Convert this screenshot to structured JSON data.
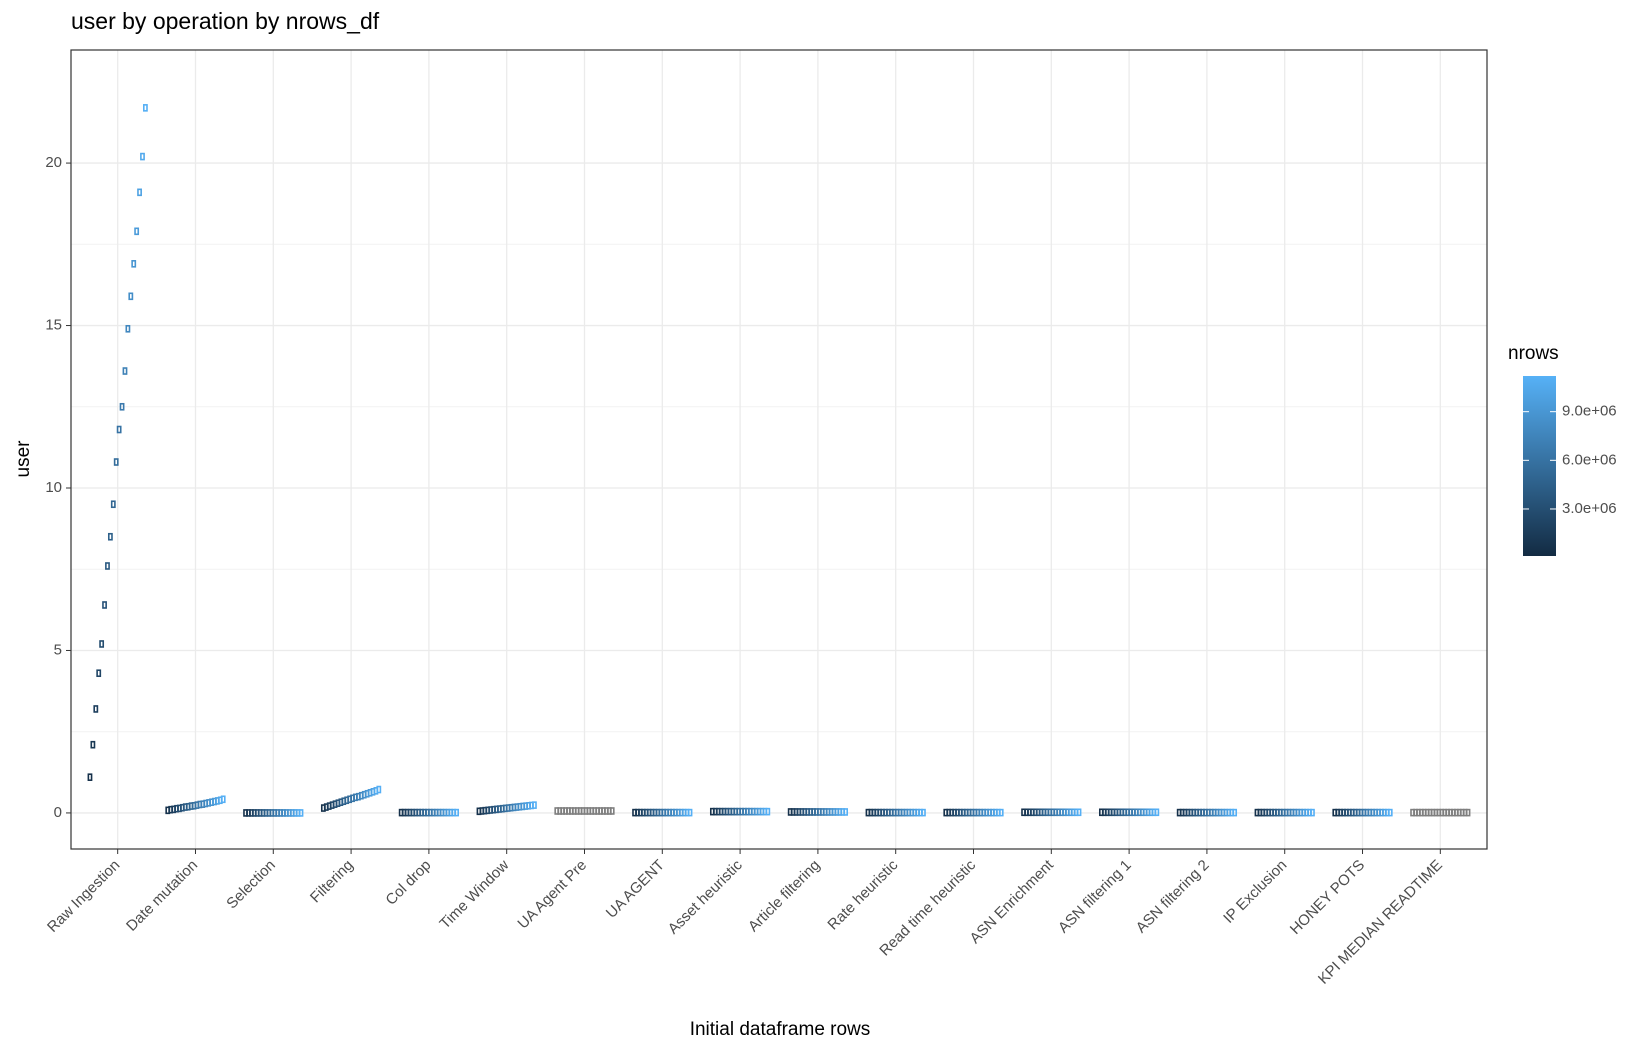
{
  "chart_data": {
    "type": "dodged-box",
    "title": "user by operation by nrows_df",
    "x_label": "Initial dataframe rows",
    "y_label": "user",
    "legend_title": "nrows",
    "ylim": [
      -1.11,
      23.48
    ],
    "yticks": [
      0,
      5,
      10,
      15,
      20
    ],
    "grid": true,
    "low_color": "#132B43",
    "high_color": "#56B1F7",
    "na_color": "#7F7F7F",
    "colorlim": [
      100000,
      11200000
    ],
    "colorticks": [
      {
        "value": 3000000,
        "label": "3.0e+06"
      },
      {
        "value": 6000000,
        "label": "6.0e+06"
      },
      {
        "value": 9000000,
        "label": "9.0e+06"
      }
    ],
    "nrows": [
      600000,
      1150000,
      1700000,
      2250000,
      2800000,
      3350000,
      3900000,
      4450000,
      5000000,
      5550000,
      6100000,
      6650000,
      7200000,
      7750000,
      8300000,
      8850000,
      9400000,
      9950000,
      10500000,
      11050000
    ],
    "groups": [
      {
        "name": "Raw Ingestion",
        "has_nrows": true,
        "values": [
          1.1,
          2.1,
          3.2,
          4.3,
          5.2,
          6.4,
          7.6,
          8.5,
          9.5,
          10.8,
          11.8,
          12.5,
          13.6,
          14.9,
          15.9,
          16.9,
          17.9,
          19.1,
          20.2,
          21.7
        ]
      },
      {
        "name": "Date mutation",
        "has_nrows": true,
        "values": [
          0.08,
          0.1,
          0.11,
          0.13,
          0.14,
          0.16,
          0.18,
          0.19,
          0.21,
          0.22,
          0.24,
          0.26,
          0.27,
          0.29,
          0.31,
          0.33,
          0.35,
          0.37,
          0.39,
          0.42
        ]
      },
      {
        "name": "Selection",
        "has_nrows": true,
        "values": [
          0,
          0,
          0,
          0,
          0,
          0,
          0,
          0,
          0,
          0,
          0,
          0,
          0,
          0,
          0,
          0,
          0,
          0,
          0,
          0
        ]
      },
      {
        "name": "Filtering",
        "has_nrows": true,
        "values": [
          0.15,
          0.18,
          0.21,
          0.24,
          0.27,
          0.3,
          0.33,
          0.36,
          0.39,
          0.42,
          0.45,
          0.48,
          0.5,
          0.53,
          0.56,
          0.59,
          0.62,
          0.65,
          0.68,
          0.72
        ]
      },
      {
        "name": "Col drop",
        "has_nrows": true,
        "values": [
          0.01,
          0.01,
          0.01,
          0.01,
          0.01,
          0.01,
          0.01,
          0.01,
          0.01,
          0.01,
          0.01,
          0.01,
          0.01,
          0.01,
          0.01,
          0.01,
          0.01,
          0.01,
          0.01,
          0.01
        ]
      },
      {
        "name": "Time Window",
        "has_nrows": true,
        "values": [
          0.05,
          0.06,
          0.07,
          0.08,
          0.09,
          0.1,
          0.11,
          0.12,
          0.13,
          0.14,
          0.15,
          0.16,
          0.17,
          0.18,
          0.19,
          0.2,
          0.21,
          0.22,
          0.23,
          0.24
        ]
      },
      {
        "name": "UA Agent Pre",
        "has_nrows": false,
        "values": [
          0.06,
          0.06,
          0.06,
          0.06,
          0.06,
          0.06,
          0.06,
          0.06,
          0.06,
          0.06,
          0.06,
          0.06,
          0.06,
          0.06,
          0.06,
          0.06,
          0.06,
          0.06,
          0.06,
          0.06
        ]
      },
      {
        "name": "UA AGENT",
        "has_nrows": true,
        "values": [
          0.01,
          0.01,
          0.01,
          0.01,
          0.01,
          0.01,
          0.01,
          0.01,
          0.01,
          0.01,
          0.01,
          0.01,
          0.01,
          0.01,
          0.01,
          0.01,
          0.01,
          0.01,
          0.01,
          0.01
        ]
      },
      {
        "name": "Asset heuristic",
        "has_nrows": true,
        "values": [
          0.04,
          0.04,
          0.04,
          0.04,
          0.04,
          0.04,
          0.04,
          0.04,
          0.04,
          0.04,
          0.04,
          0.04,
          0.04,
          0.04,
          0.04,
          0.04,
          0.04,
          0.04,
          0.04,
          0.04
        ]
      },
      {
        "name": "Article filtering",
        "has_nrows": true,
        "values": [
          0.03,
          0.03,
          0.03,
          0.03,
          0.03,
          0.03,
          0.03,
          0.03,
          0.03,
          0.03,
          0.03,
          0.03,
          0.03,
          0.03,
          0.03,
          0.03,
          0.03,
          0.03,
          0.03,
          0.03
        ]
      },
      {
        "name": "Rate heuristic",
        "has_nrows": true,
        "values": [
          0.01,
          0.01,
          0.01,
          0.01,
          0.01,
          0.01,
          0.01,
          0.01,
          0.01,
          0.01,
          0.01,
          0.01,
          0.01,
          0.01,
          0.01,
          0.01,
          0.01,
          0.01,
          0.01,
          0.01
        ]
      },
      {
        "name": "Read time heuristic",
        "has_nrows": true,
        "values": [
          0.01,
          0.01,
          0.01,
          0.01,
          0.01,
          0.01,
          0.01,
          0.01,
          0.01,
          0.01,
          0.01,
          0.01,
          0.01,
          0.01,
          0.01,
          0.01,
          0.01,
          0.01,
          0.01,
          0.01
        ]
      },
      {
        "name": "ASN Enrichment",
        "has_nrows": true,
        "values": [
          0.02,
          0.02,
          0.02,
          0.02,
          0.02,
          0.02,
          0.02,
          0.02,
          0.02,
          0.02,
          0.02,
          0.02,
          0.02,
          0.02,
          0.02,
          0.02,
          0.02,
          0.02,
          0.02,
          0.02
        ]
      },
      {
        "name": "ASN filtering 1",
        "has_nrows": true,
        "values": [
          0.02,
          0.02,
          0.02,
          0.02,
          0.02,
          0.02,
          0.02,
          0.02,
          0.02,
          0.02,
          0.02,
          0.02,
          0.02,
          0.02,
          0.02,
          0.02,
          0.02,
          0.02,
          0.02,
          0.02
        ]
      },
      {
        "name": "ASN filtering 2",
        "has_nrows": true,
        "values": [
          0.01,
          0.01,
          0.01,
          0.01,
          0.01,
          0.01,
          0.01,
          0.01,
          0.01,
          0.01,
          0.01,
          0.01,
          0.01,
          0.01,
          0.01,
          0.01,
          0.01,
          0.01,
          0.01,
          0.01
        ]
      },
      {
        "name": "IP Exclusion",
        "has_nrows": true,
        "values": [
          0.01,
          0.01,
          0.01,
          0.01,
          0.01,
          0.01,
          0.01,
          0.01,
          0.01,
          0.01,
          0.01,
          0.01,
          0.01,
          0.01,
          0.01,
          0.01,
          0.01,
          0.01,
          0.01,
          0.01
        ]
      },
      {
        "name": "HONEY POTS",
        "has_nrows": true,
        "values": [
          0.01,
          0.01,
          0.01,
          0.01,
          0.01,
          0.01,
          0.01,
          0.01,
          0.01,
          0.01,
          0.01,
          0.01,
          0.01,
          0.01,
          0.01,
          0.01,
          0.01,
          0.01,
          0.01,
          0.01
        ]
      },
      {
        "name": "KPI MEDIAN READTIME",
        "has_nrows": false,
        "values": [
          0.01,
          0.01,
          0.01,
          0.01,
          0.01,
          0.01,
          0.01,
          0.01,
          0.01,
          0.01,
          0.01,
          0.01,
          0.01,
          0.01,
          0.01,
          0.01,
          0.01,
          0.01,
          0.01,
          0.01
        ]
      }
    ]
  }
}
